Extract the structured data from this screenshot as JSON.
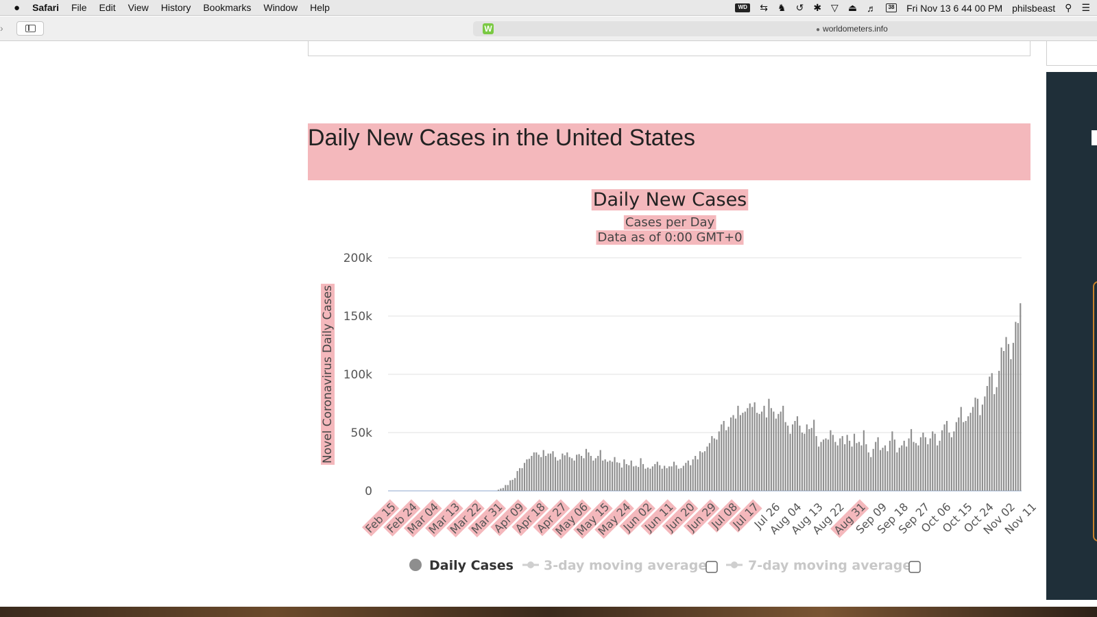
{
  "menubar": {
    "app": "Safari",
    "items": [
      "File",
      "Edit",
      "View",
      "History",
      "Bookmarks",
      "Window",
      "Help"
    ],
    "clock": "Fri Nov 13  6 44 00 PM",
    "user": "philsbeast",
    "wd_badge": "WD",
    "cal_badge": "38"
  },
  "browser": {
    "url": "worldometers.info",
    "favicon_letter": "W"
  },
  "page": {
    "heading": "Daily New Cases in the United States"
  },
  "chart_data": {
    "type": "bar",
    "title": "Daily New Cases",
    "subtitle_lines": [
      "Cases per Day",
      "Data as of 0:00 GMT+0"
    ],
    "ylabel": "Novel Coronavirus Daily Cases",
    "xlabel": "",
    "ylim": [
      0,
      200000
    ],
    "yticks": [
      0,
      50000,
      100000,
      150000,
      200000
    ],
    "ytick_labels": [
      "0",
      "50k",
      "100k",
      "150k",
      "200k"
    ],
    "grid": "horizontal",
    "legend_placement": "bottom-center",
    "bar_color": "#8e8e8e",
    "x_start": "Feb 15",
    "x_end": "Nov 12",
    "xtick_labels": [
      "Feb 15",
      "Feb 24",
      "Mar 04",
      "Mar 13",
      "Mar 22",
      "Mar 31",
      "Apr 09",
      "Apr 18",
      "Apr 27",
      "May 06",
      "May 15",
      "May 24",
      "Jun 02",
      "Jun 11",
      "Jun 20",
      "Jun 29",
      "Jul 08",
      "Jul 17",
      "Jul 26",
      "Aug 04",
      "Aug 13",
      "Aug 22",
      "Aug 31",
      "Sep 09",
      "Sep 18",
      "Sep 27",
      "Oct 06",
      "Oct 15",
      "Oct 24",
      "Nov 02",
      "Nov 11"
    ],
    "highlighted_xticks": [
      "Feb 15",
      "Feb 24",
      "Mar 04",
      "Mar 13",
      "Mar 22",
      "Mar 31",
      "Apr 09",
      "Apr 18",
      "Apr 27",
      "May 06",
      "May 15",
      "May 24",
      "Jun 02",
      "Jun 11",
      "Jun 20",
      "Jun 29",
      "Jul 08",
      "Jul 17",
      "Aug 31"
    ],
    "legend": [
      {
        "label": "Daily Cases",
        "active": true
      },
      {
        "label": "3-day moving average",
        "active": false
      },
      {
        "label": "7-day moving average",
        "active": false
      }
    ],
    "series": [
      {
        "values": [
          0,
          0,
          0,
          0,
          0,
          0,
          0,
          0,
          0,
          0,
          0,
          0,
          0,
          0,
          0,
          0,
          0,
          0,
          0,
          0,
          0,
          0,
          0,
          0,
          0,
          0,
          0,
          0,
          0,
          0,
          0,
          0,
          0,
          0,
          0,
          0,
          0,
          0,
          0,
          0,
          0,
          0,
          0,
          0,
          0,
          0,
          1000,
          2000,
          2500,
          5000,
          5000,
          9000,
          9500,
          11000,
          17000,
          19500,
          19500,
          24000,
          27000,
          27500,
          30000,
          33000,
          33000,
          31000,
          29000,
          35000,
          30000,
          32000,
          32000,
          34000,
          29000,
          26000,
          27000,
          32000,
          30500,
          33000,
          29000,
          28000,
          26000,
          31000,
          31500,
          30000,
          28000,
          36000,
          33000,
          30000,
          26000,
          28000,
          30000,
          35000,
          26000,
          27000,
          25000,
          26000,
          25000,
          29000,
          24500,
          24000,
          20000,
          27000,
          23000,
          22000,
          26000,
          21000,
          21500,
          20500,
          28000,
          23000,
          19000,
          20000,
          19000,
          21000,
          23000,
          25000,
          22000,
          19000,
          21500,
          19500,
          21000,
          21000,
          25000,
          22000,
          19000,
          19500,
          21500,
          24000,
          26000,
          22000,
          27000,
          30000,
          27000,
          34000,
          33000,
          34000,
          38000,
          41000,
          47000,
          45000,
          44000,
          51000,
          57000,
          60000,
          52000,
          55000,
          63000,
          65000,
          62000,
          73000,
          65000,
          67000,
          68000,
          71000,
          75000,
          72000,
          76000,
          67000,
          66000,
          68000,
          73000,
          63000,
          79000,
          71000,
          68000,
          62000,
          66000,
          68000,
          73000,
          59000,
          56000,
          49000,
          57000,
          60000,
          64000,
          56000,
          50000,
          49000,
          57000,
          53000,
          54000,
          61000,
          47000,
          38000,
          42000,
          44000,
          45000,
          44000,
          52000,
          48000,
          42000,
          39000,
          45000,
          47000,
          40000,
          48000,
          43000,
          38000,
          49000,
          41000,
          42000,
          39000,
          52000,
          40000,
          33000,
          29000,
          36000,
          42000,
          46000,
          35000,
          37000,
          39000,
          34000,
          43000,
          51000,
          44000,
          33000,
          37000,
          39000,
          43000,
          38000,
          45000,
          53000,
          42000,
          41000,
          39000,
          46000,
          50000,
          46000,
          40000,
          45000,
          51000,
          49000,
          39000,
          43000,
          52000,
          57000,
          60000,
          50000,
          46000,
          51000,
          59000,
          63000,
          72000,
          59000,
          60000,
          64000,
          67000,
          72000,
          80000,
          79000,
          65000,
          74000,
          81000,
          90000,
          98000,
          101000,
          83000,
          89000,
          103000,
          123000,
          120000,
          132000,
          126000,
          113000,
          127000,
          145000,
          144000,
          161000
        ]
      }
    ]
  }
}
